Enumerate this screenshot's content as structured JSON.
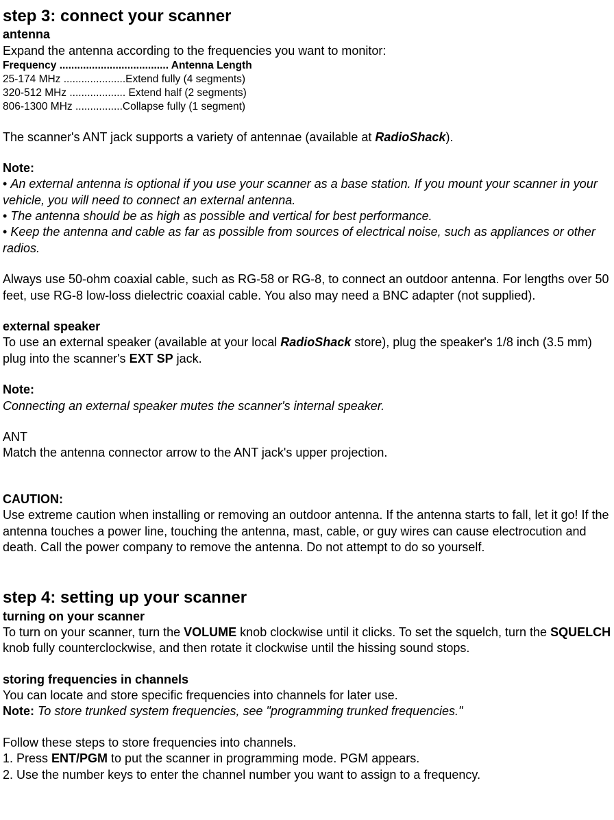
{
  "step3": {
    "title": "step 3: connect your scanner",
    "antenna": {
      "heading": "antenna",
      "intro": "Expand the antenna according to the frequencies you want to monitor:",
      "table_header": "Frequency ..................................... Antenna Length",
      "rows": [
        "25-174 MHz .....................Extend fully (4 segments)",
        "320-512 MHz ................... Extend half (2 segments)",
        "806-1300 MHz ................Collapse fully (1 segment)"
      ],
      "p_jack_prefix": "The scanner's ANT jack supports a variety of antennae (available at ",
      "radioshack": "RadioShack",
      "p_jack_suffix": ").",
      "note_label": "Note:",
      "notes": [
        "An external antenna is optional if you use your scanner as a base station. If you mount your scanner in your vehicle, you will need to connect an external antenna.",
        "The antenna should be as high as possible and vertical for best performance.",
        "Keep the antenna and cable as far as possible from sources of electrical noise, such as appliances or other radios."
      ],
      "coax": "Always use 50-ohm coaxial cable, such as RG-58 or RG-8, to connect an outdoor antenna. For lengths over 50 feet, use RG-8 low-loss dielectric coaxial cable. You also may need a BNC adapter (not supplied)."
    },
    "speaker": {
      "heading": "external speaker",
      "p_prefix": "To use an external speaker (available at your local ",
      "radioshack": "RadioShack",
      "p_mid": " store), plug the speaker's 1/8 inch (3.5 mm) plug into the scanner's ",
      "extsp": "EXT SP",
      "p_suffix": " jack.",
      "note_label": "Note:",
      "note_text": "Connecting an external speaker mutes the scanner's internal speaker.",
      "ant_label": "ANT",
      "ant_text": "Match the antenna connector arrow to the ANT jack's upper projection."
    },
    "caution": {
      "label": "CAUTION:",
      "text": "Use extreme caution when installing or removing an outdoor antenna. If the antenna starts to fall, let it go! If the antenna touches a power line, touching the antenna, mast, cable, or guy wires can cause electrocution and death. Call the power company to remove the antenna. Do not attempt to do so yourself."
    }
  },
  "step4": {
    "title": "step 4: setting up your scanner",
    "turning_on": {
      "heading": "turning on your scanner",
      "p_prefix": "To turn on your scanner, turn the ",
      "volume": "VOLUME",
      "p_mid": " knob clockwise until it clicks. To set the squelch, turn the ",
      "squelch": "SQUELCH",
      "p_suffix": " knob fully counterclockwise, and then rotate it clockwise until the hissing sound stops."
    },
    "storing": {
      "heading": "storing frequencies in channels",
      "intro": "You can locate and store specific frequencies into channels for later use.",
      "note_label": "Note: ",
      "note_text": "To store trunked system frequencies, see \"programming trunked frequencies.\"",
      "follow": "Follow these steps to store frequencies into channels.",
      "step1_prefix": "1. Press ",
      "step1_bold": "ENT/PGM",
      "step1_suffix": " to put the scanner in programming mode. PGM appears.",
      "step2": "2. Use the number keys to enter the channel number you want to assign to a frequency."
    }
  }
}
